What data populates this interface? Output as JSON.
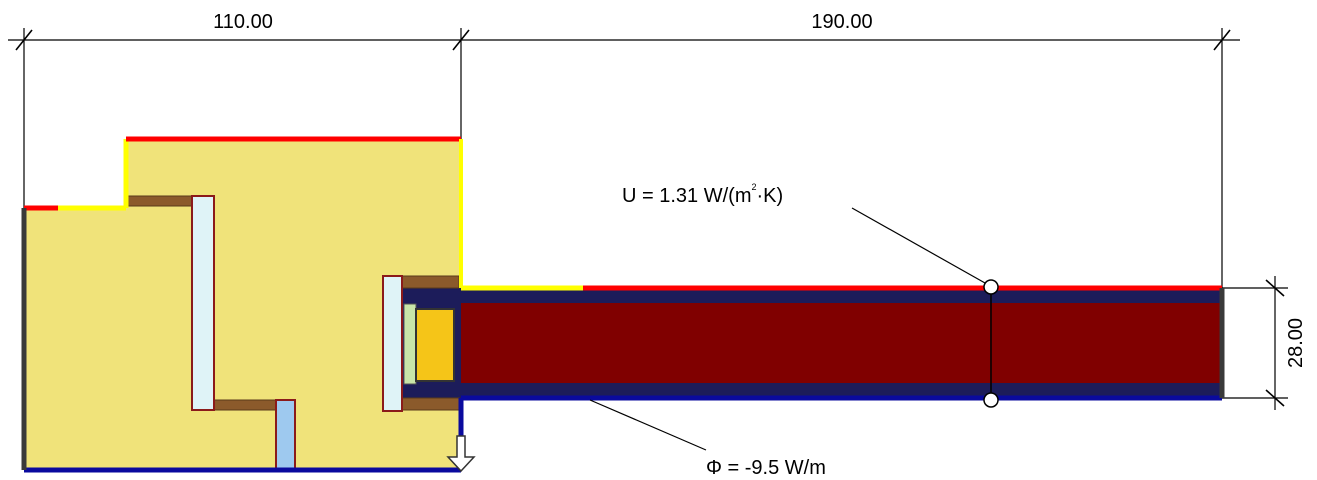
{
  "dimensions": {
    "top_left": "110.00",
    "top_right": "190.00",
    "right_thickness": "28.00"
  },
  "annotations": {
    "u_value": {
      "prefix": "U = 1.31 W/(m",
      "superscript": "2",
      "suffix": "·K)"
    },
    "flux": {
      "symbol": "Φ",
      "value": " = -9.5 W/m"
    }
  },
  "colors": {
    "background": "#ffffff",
    "fill_yellow": "#f0e37a",
    "insulation_red": "#800000",
    "membrane_navy": "#1c1c5a",
    "timber_brown": "#8b5a2b",
    "glass_lightblue": "#dff3f7",
    "glass_blue": "#9ec9ef",
    "core_orange": "#f5c518",
    "bc_exterior_red": "#ff0000",
    "bc_yellow": "#ffff00",
    "bc_interior_blue": "#0a0a9e",
    "bc_adiabatic": "#3a3a3a"
  },
  "icons": {
    "measure_points": "circle-marker-icon",
    "arrow": "down-arrow-icon"
  }
}
